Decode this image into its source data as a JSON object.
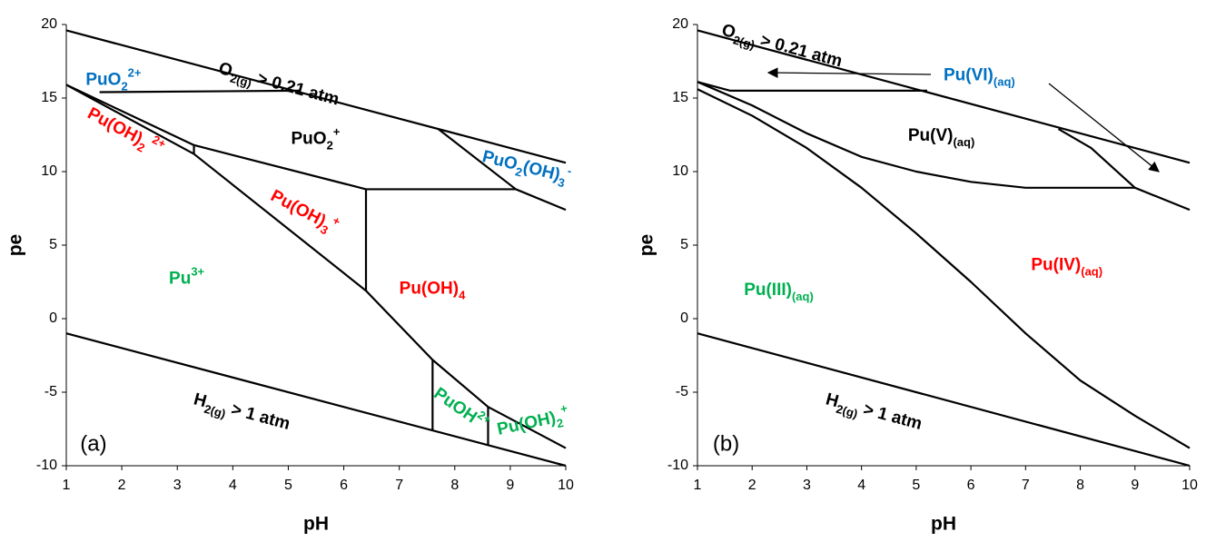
{
  "chart_data": [
    {
      "type": "line",
      "xlabel": "pH",
      "ylabel": "pe",
      "xlim": [
        1,
        10
      ],
      "ylim": [
        -10,
        20
      ],
      "xticks": [
        1,
        2,
        3,
        4,
        5,
        6,
        7,
        8,
        9,
        10
      ],
      "yticks": [
        -10,
        -5,
        0,
        5,
        10,
        15,
        20
      ],
      "series": [
        {
          "color": "#000000",
          "x": [
            1,
            10
          ],
          "values": [
            19.6,
            10.6
          ]
        },
        {
          "color": "#000000",
          "x": [
            1,
            10
          ],
          "values": [
            -1,
            -10
          ]
        },
        {
          "color": "#000000",
          "x": [
            1.6,
            5.2
          ],
          "values": [
            15.4,
            15.5
          ]
        },
        {
          "color": "#000000",
          "x": [
            1,
            3.3,
            6.4,
            9.1
          ],
          "values": [
            15.9,
            11.8,
            8.8,
            8.8
          ]
        },
        {
          "color": "#000000",
          "x": [
            1,
            3.3,
            6.4,
            7.6,
            8.6,
            10
          ],
          "values": [
            15.9,
            11.2,
            1.9,
            -2.8,
            -6,
            -8.8
          ]
        },
        {
          "color": "#000000",
          "x": [
            3.3,
            3.3
          ],
          "values": [
            11.2,
            11.8
          ]
        },
        {
          "color": "#000000",
          "x": [
            6.4,
            6.4
          ],
          "values": [
            8.8,
            1.9
          ]
        },
        {
          "color": "#000000",
          "x": [
            7.6,
            7.6
          ],
          "values": [
            -2.8,
            -7.6
          ]
        },
        {
          "color": "#000000",
          "x": [
            8.6,
            8.6
          ],
          "values": [
            -6,
            -8.6
          ]
        },
        {
          "color": "#000000",
          "x": [
            7.7,
            9.1,
            10
          ],
          "values": [
            12.9,
            8.8,
            7.4
          ]
        }
      ],
      "annotations": [
        {
          "color": "#0070c0",
          "parts": [
            {
              "text": "PuO"
            },
            {
              "text": "2",
              "sub": true
            },
            {
              "text": "2+",
              "sup": true
            }
          ]
        },
        {
          "color": "#000000",
          "parts": [
            {
              "text": "O"
            },
            {
              "text": "2(g)",
              "sub": true
            },
            {
              "text": " > 0.21 atm"
            }
          ]
        },
        {
          "color": "#ff0000",
          "parts": [
            {
              "text": "Pu(OH)"
            },
            {
              "text": "2",
              "sub": true
            },
            {
              "text": " 2+",
              "sup": true
            }
          ]
        },
        {
          "color": "#000000",
          "parts": [
            {
              "text": "PuO"
            },
            {
              "text": "2",
              "sub": true
            },
            {
              "text": "+",
              "sup": true
            }
          ]
        },
        {
          "color": "#0070c0",
          "parts": [
            {
              "text": "PuO"
            },
            {
              "text": "2",
              "sub": true
            },
            {
              "text": "(OH)"
            },
            {
              "text": "3",
              "sub": true
            },
            {
              "text": "-",
              "sup": true
            }
          ]
        },
        {
          "color": "#ff0000",
          "parts": [
            {
              "text": "Pu(OH)"
            },
            {
              "text": "3",
              "sub": true
            },
            {
              "text": "+",
              "sup": true
            }
          ]
        },
        {
          "color": "#00b050",
          "parts": [
            {
              "text": "Pu"
            },
            {
              "text": "3+",
              "sup": true
            }
          ]
        },
        {
          "color": "#ff0000",
          "parts": [
            {
              "text": "Pu(OH)"
            },
            {
              "text": "4",
              "sub": true
            }
          ]
        },
        {
          "color": "#00b050",
          "parts": [
            {
              "text": "PuOH"
            },
            {
              "text": "2+",
              "sup": true
            }
          ]
        },
        {
          "color": "#00b050",
          "parts": [
            {
              "text": "Pu(OH)"
            },
            {
              "text": "2",
              "sub": true
            },
            {
              "text": "+",
              "sup": true
            }
          ]
        },
        {
          "color": "#000000",
          "parts": [
            {
              "text": "H"
            },
            {
              "text": "2(g)",
              "sub": true
            },
            {
              "text": " > 1 atm"
            }
          ]
        },
        {
          "color": "#000000",
          "parts": [
            {
              "text": "(a)"
            }
          ]
        }
      ]
    },
    {
      "type": "line",
      "xlabel": "pH",
      "ylabel": "pe",
      "xlim": [
        1,
        10
      ],
      "ylim": [
        -10,
        20
      ],
      "xticks": [
        1,
        2,
        3,
        4,
        5,
        6,
        7,
        8,
        9,
        10
      ],
      "yticks": [
        -10,
        -5,
        0,
        5,
        10,
        15,
        20
      ],
      "series": [
        {
          "color": "#000000",
          "x": [
            1,
            10
          ],
          "values": [
            19.6,
            10.6
          ]
        },
        {
          "color": "#000000",
          "x": [
            1,
            10
          ],
          "values": [
            -1,
            -10
          ]
        },
        {
          "color": "#000000",
          "x": [
            1,
            1.6,
            5.2
          ],
          "values": [
            16.1,
            15.5,
            15.5
          ]
        },
        {
          "color": "#000000",
          "x": [
            1,
            2,
            3,
            4,
            5,
            6,
            7,
            8,
            9
          ],
          "values": [
            16.1,
            14.5,
            12.6,
            11.0,
            10.0,
            9.3,
            8.9,
            8.9,
            8.9
          ]
        },
        {
          "color": "#000000",
          "x": [
            1,
            2,
            3,
            4,
            5,
            6,
            7,
            8,
            9,
            10
          ],
          "values": [
            15.6,
            13.8,
            11.6,
            8.9,
            5.8,
            2.5,
            -1,
            -4.2,
            -6.6,
            -8.8
          ]
        },
        {
          "color": "#000000",
          "x": [
            7.6,
            8.2,
            9,
            10
          ],
          "values": [
            12.9,
            11.6,
            8.9,
            7.4
          ]
        }
      ],
      "annotations": [
        {
          "color": "#000000",
          "parts": [
            {
              "text": "O"
            },
            {
              "text": "2(g)",
              "sub": true
            },
            {
              "text": " > 0.21 atm"
            }
          ]
        },
        {
          "color": "#0070c0",
          "parts": [
            {
              "text": "Pu(VI)"
            },
            {
              "text": "(aq)",
              "sub": true
            }
          ]
        },
        {
          "color": "#000000",
          "parts": [
            {
              "text": "Pu(V)"
            },
            {
              "text": "(aq)",
              "sub": true
            }
          ]
        },
        {
          "color": "#ff0000",
          "parts": [
            {
              "text": "Pu(IV)"
            },
            {
              "text": "(aq)",
              "sub": true
            }
          ]
        },
        {
          "color": "#00b050",
          "parts": [
            {
              "text": "Pu(III)"
            },
            {
              "text": "(aq)",
              "sub": true
            }
          ]
        },
        {
          "color": "#000000",
          "parts": [
            {
              "text": "H"
            },
            {
              "text": "2(g)",
              "sub": true
            },
            {
              "text": " > 1 atm"
            }
          ]
        },
        {
          "color": "#000000",
          "parts": [
            {
              "text": "(b)"
            }
          ]
        }
      ]
    }
  ]
}
